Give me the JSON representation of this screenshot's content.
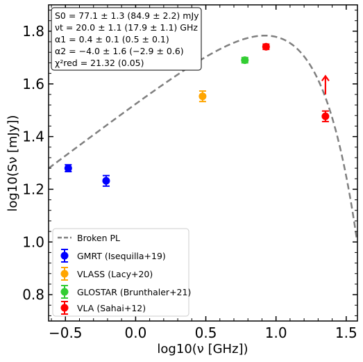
{
  "chart_data": {
    "type": "scatter",
    "title": "",
    "xlabel": "log10(ν [GHz])",
    "ylabel": "log10(Sν [mJy])",
    "xlim": [
      -0.62,
      1.58
    ],
    "ylim": [
      0.7,
      1.9
    ],
    "xticks": [
      -0.5,
      0.0,
      0.5,
      1.0,
      1.5
    ],
    "xtick_labels": [
      "−0.5",
      "0.0",
      "0.5",
      "1.0",
      "1.5"
    ],
    "yticks": [
      0.8,
      1.0,
      1.2,
      1.4,
      1.6,
      1.8
    ],
    "ytick_labels": [
      "0.8",
      "1.0",
      "1.2",
      "1.4",
      "1.6",
      "1.8"
    ],
    "grid": false,
    "model": {
      "name": "Broken PL",
      "S0": 77.1,
      "nu_t": 20.0,
      "alpha1": 0.4,
      "alpha2": -4.0,
      "color": "#7f7f7f"
    },
    "info_lines": [
      "S0 = 77.1 ± 1.3 (84.9 ± 2.2) mJy",
      "νt = 20.0 ± 1.1 (17.9 ± 1.1) GHz",
      "α1 = 0.4 ± 0.1 (0.5 ± 0.1)",
      "α2 = −4.0 ± 1.6 (−2.9 ± 0.6)",
      "χ²red = 21.32 (0.05)"
    ],
    "legend_position": "lower-left",
    "series": [
      {
        "name": "GMRT (Isequilla+19)",
        "color": "#0000ff",
        "points": [
          {
            "x": -0.48,
            "y": 1.28,
            "err": 0.013
          },
          {
            "x": -0.21,
            "y": 1.232,
            "err": 0.02
          }
        ]
      },
      {
        "name": "VLASS (Lacy+20)",
        "color": "#ffa500",
        "points": [
          {
            "x": 0.477,
            "y": 1.553,
            "err": 0.02
          }
        ]
      },
      {
        "name": "GLOSTAR (Brunthaler+21)",
        "color": "#32cd32",
        "points": [
          {
            "x": 0.778,
            "y": 1.69,
            "err": 0.01
          }
        ]
      },
      {
        "name": "VLA (Sahai+12)",
        "color": "#ff0000",
        "points": [
          {
            "x": 0.929,
            "y": 1.741,
            "err": 0.01
          },
          {
            "x": 1.352,
            "y": 1.477,
            "err": 0.02
          }
        ]
      }
    ],
    "lower_limit_arrow": {
      "x": 1.352,
      "y_from": 1.56,
      "y_to": 1.63,
      "color": "#ff0000"
    }
  }
}
